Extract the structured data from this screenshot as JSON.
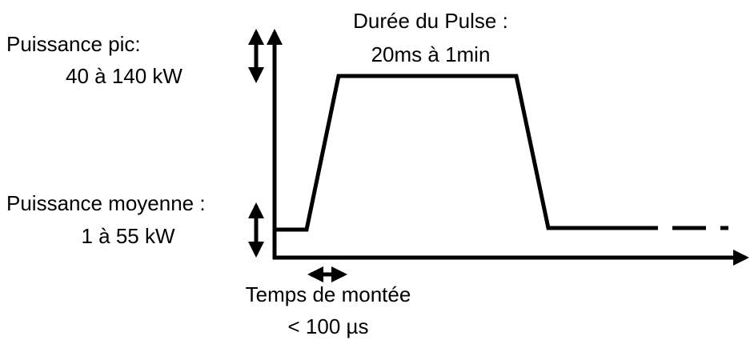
{
  "labels": {
    "peak_title": "Puissance pic:",
    "peak_range": "40 à 140 kW",
    "duration_title": "Durée du Pulse :",
    "duration_range": "20ms à 1min",
    "mean_title": "Puissance moyenne :",
    "mean_range": "1 à 55 kW",
    "rise_title": "Temps de montée",
    "rise_value": "< 100 µs"
  }
}
